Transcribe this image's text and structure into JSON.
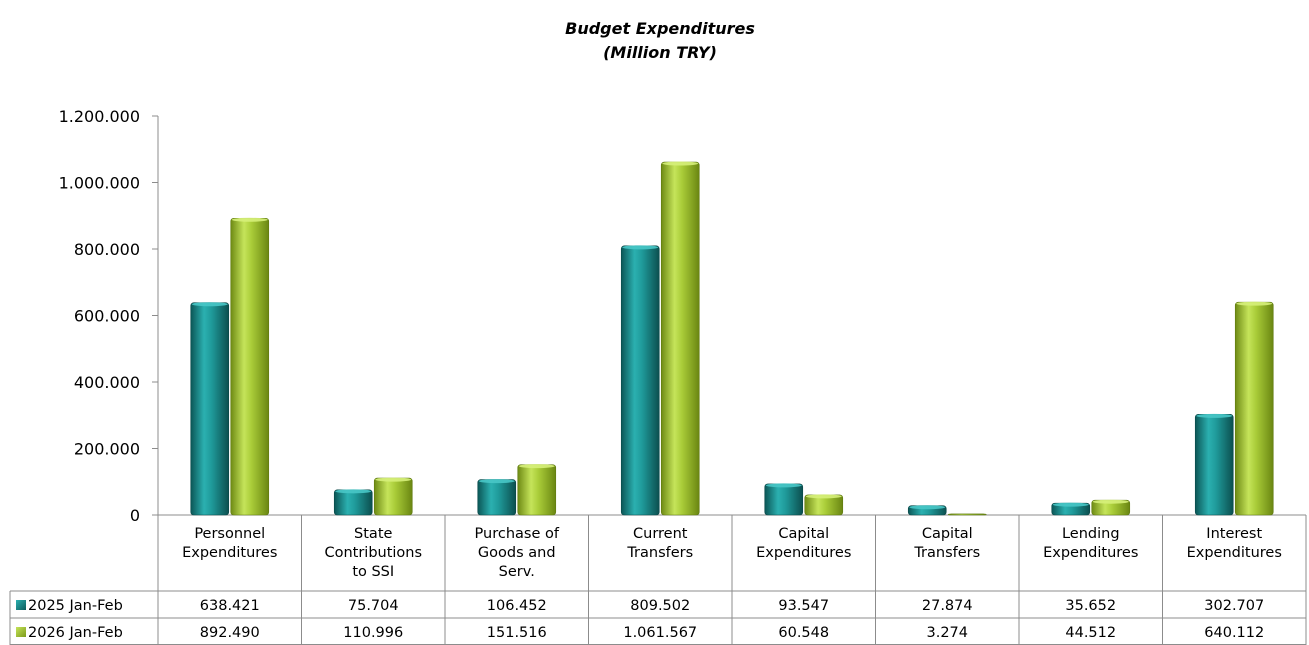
{
  "chart_data": {
    "type": "bar",
    "title": "Budget Expenditures",
    "subtitle": "(Million TRY)",
    "categories": [
      [
        "Personnel",
        "Expenditures"
      ],
      [
        "State",
        "Contributions",
        "to SSI"
      ],
      [
        "Purchase of",
        "Goods and",
        "Serv."
      ],
      [
        "Current",
        "Transfers"
      ],
      [
        "Capital",
        "Expenditures"
      ],
      [
        "Capital",
        "Transfers"
      ],
      [
        "Lending",
        "Expenditures"
      ],
      [
        "Interest",
        "Expenditures"
      ]
    ],
    "series": [
      {
        "name": "2025 Jan-Feb",
        "color": "#1a8c8c",
        "values": [
          638421,
          75704,
          106452,
          809502,
          93547,
          27874,
          35652,
          302707
        ],
        "labels": [
          "638.421",
          "75.704",
          "106.452",
          "809.502",
          "93.547",
          "27.874",
          "35.652",
          "302.707"
        ]
      },
      {
        "name": "2026 Jan-Feb",
        "color": "#a6c832",
        "values": [
          892490,
          110996,
          151516,
          1061567,
          60548,
          3274,
          44512,
          640112
        ],
        "labels": [
          "892.490",
          "110.996",
          "151.516",
          "1.061.567",
          "60.548",
          "3.274",
          "44.512",
          "640.112"
        ]
      }
    ],
    "ylim": [
      0,
      1200000
    ],
    "yticks": [
      0,
      200000,
      400000,
      600000,
      800000,
      1000000,
      1200000
    ],
    "ytick_labels": [
      "0",
      "200.000",
      "400.000",
      "600.000",
      "800.000",
      "1.000.000",
      "1.200.000"
    ],
    "grid": false,
    "legend": "data-table"
  }
}
